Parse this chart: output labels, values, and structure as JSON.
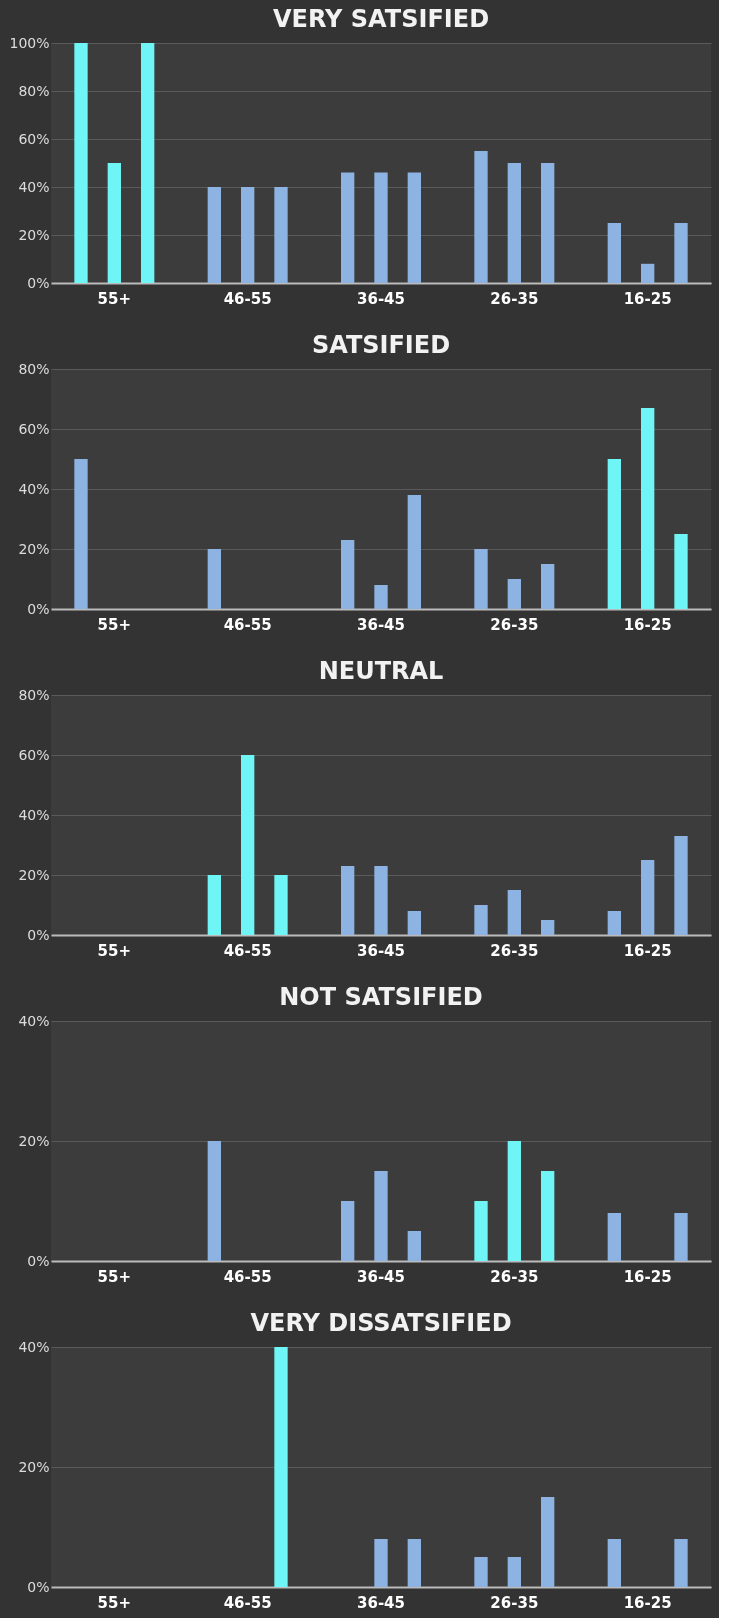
{
  "chart_data": [
    {
      "type": "bar",
      "title": "VERY SATSIFIED",
      "categories": [
        "55+",
        "46-55",
        "36-45",
        "26-35",
        "16-25"
      ],
      "ylim": [
        0,
        100
      ],
      "yticks": [
        {
          "value": 0,
          "label": "0%"
        },
        {
          "value": 20,
          "label": "20%"
        },
        {
          "value": 40,
          "label": "40%"
        },
        {
          "value": 60,
          "label": "60%"
        },
        {
          "value": 80,
          "label": "80%"
        },
        {
          "value": 100,
          "label": "100%"
        }
      ],
      "grid": "y",
      "series": [
        {
          "colors": [
            "#6ff5f5",
            "#8db3e2",
            "#8db3e2",
            "#8db3e2",
            "#8db3e2"
          ],
          "values": [
            100,
            40,
            46,
            55,
            25
          ]
        },
        {
          "colors": [
            "#6ff5f5",
            "#8db3e2",
            "#8db3e2",
            "#8db3e2",
            "#8db3e2"
          ],
          "values": [
            50,
            40,
            46,
            50,
            8
          ]
        },
        {
          "colors": [
            "#6ff5f5",
            "#8db3e2",
            "#8db3e2",
            "#8db3e2",
            "#8db3e2"
          ],
          "values": [
            100,
            40,
            46,
            50,
            25
          ]
        }
      ]
    },
    {
      "type": "bar",
      "title": "SATSIFIED",
      "categories": [
        "55+",
        "46-55",
        "36-45",
        "26-35",
        "16-25"
      ],
      "ylim": [
        0,
        80
      ],
      "yticks": [
        {
          "value": 0,
          "label": "0%"
        },
        {
          "value": 20,
          "label": "20%"
        },
        {
          "value": 40,
          "label": "40%"
        },
        {
          "value": 60,
          "label": "60%"
        },
        {
          "value": 80,
          "label": "80%"
        }
      ],
      "grid": "y",
      "series": [
        {
          "colors": [
            "#8db3e2",
            "#8db3e2",
            "#8db3e2",
            "#8db3e2",
            "#6ff5f5"
          ],
          "values": [
            50,
            20,
            23,
            20,
            50
          ]
        },
        {
          "colors": [
            "#8db3e2",
            "#8db3e2",
            "#8db3e2",
            "#8db3e2",
            "#6ff5f5"
          ],
          "values": [
            0,
            0,
            8,
            10,
            67
          ]
        },
        {
          "colors": [
            "#8db3e2",
            "#8db3e2",
            "#8db3e2",
            "#8db3e2",
            "#6ff5f5"
          ],
          "values": [
            0,
            0,
            38,
            15,
            25
          ]
        }
      ]
    },
    {
      "type": "bar",
      "title": "NEUTRAL",
      "categories": [
        "55+",
        "46-55",
        "36-45",
        "26-35",
        "16-25"
      ],
      "ylim": [
        0,
        80
      ],
      "yticks": [
        {
          "value": 0,
          "label": "0%"
        },
        {
          "value": 20,
          "label": "20%"
        },
        {
          "value": 40,
          "label": "40%"
        },
        {
          "value": 60,
          "label": "60%"
        },
        {
          "value": 80,
          "label": "80%"
        }
      ],
      "grid": "y",
      "series": [
        {
          "colors": [
            "#8db3e2",
            "#6ff5f5",
            "#8db3e2",
            "#8db3e2",
            "#8db3e2"
          ],
          "values": [
            0,
            20,
            23,
            10,
            8
          ]
        },
        {
          "colors": [
            "#8db3e2",
            "#6ff5f5",
            "#8db3e2",
            "#8db3e2",
            "#8db3e2"
          ],
          "values": [
            0,
            60,
            23,
            15,
            25
          ]
        },
        {
          "colors": [
            "#8db3e2",
            "#6ff5f5",
            "#8db3e2",
            "#8db3e2",
            "#8db3e2"
          ],
          "values": [
            0,
            20,
            8,
            5,
            33
          ]
        }
      ]
    },
    {
      "type": "bar",
      "title": "NOT SATSIFIED",
      "categories": [
        "55+",
        "46-55",
        "36-45",
        "26-35",
        "16-25"
      ],
      "ylim": [
        0,
        40
      ],
      "yticks": [
        {
          "value": 0,
          "label": "0%"
        },
        {
          "value": 20,
          "label": "20%"
        },
        {
          "value": 40,
          "label": "40%"
        }
      ],
      "grid": "y",
      "series": [
        {
          "colors": [
            "#8db3e2",
            "#8db3e2",
            "#8db3e2",
            "#6ff5f5",
            "#8db3e2"
          ],
          "values": [
            0,
            20,
            10,
            10,
            8
          ]
        },
        {
          "colors": [
            "#8db3e2",
            "#8db3e2",
            "#8db3e2",
            "#6ff5f5",
            "#8db3e2"
          ],
          "values": [
            0,
            0,
            15,
            20,
            0
          ]
        },
        {
          "colors": [
            "#8db3e2",
            "#8db3e2",
            "#8db3e2",
            "#6ff5f5",
            "#8db3e2"
          ],
          "values": [
            0,
            0,
            5,
            15,
            8
          ]
        }
      ]
    },
    {
      "type": "bar",
      "title": "VERY DISSATSIFIED",
      "categories": [
        "55+",
        "46-55",
        "36-45",
        "26-35",
        "16-25"
      ],
      "ylim": [
        0,
        40
      ],
      "yticks": [
        {
          "value": 0,
          "label": "0%"
        },
        {
          "value": 20,
          "label": "20%"
        },
        {
          "value": 40,
          "label": "40%"
        }
      ],
      "grid": "y",
      "series": [
        {
          "colors": [
            "#8db3e2",
            "#6ff5f5",
            "#8db3e2",
            "#8db3e2",
            "#8db3e2"
          ],
          "values": [
            0,
            0,
            0,
            5,
            8
          ]
        },
        {
          "colors": [
            "#8db3e2",
            "#6ff5f5",
            "#8db3e2",
            "#8db3e2",
            "#8db3e2"
          ],
          "values": [
            0,
            0,
            8,
            5,
            0
          ]
        },
        {
          "colors": [
            "#8db3e2",
            "#6ff5f5",
            "#8db3e2",
            "#8db3e2",
            "#8db3e2"
          ],
          "values": [
            0,
            40,
            8,
            15,
            8
          ]
        }
      ]
    }
  ]
}
